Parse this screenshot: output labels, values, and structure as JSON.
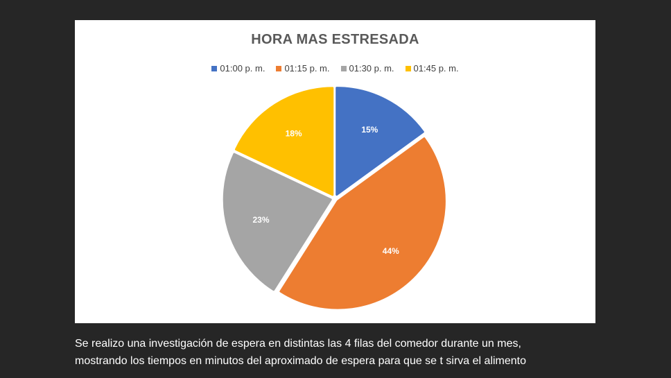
{
  "chart_data": {
    "type": "pie",
    "title": "HORA MAS ESTRESADA",
    "categories": [
      "01:00 p. m.",
      "01:15 p. m.",
      "01:30 p. m.",
      "01:45 p. m."
    ],
    "values": [
      15,
      44,
      23,
      18
    ],
    "labels": [
      "15%",
      "44%",
      "23%",
      "18%"
    ],
    "colors": [
      "#4472C4",
      "#ED7D31",
      "#A5A5A5",
      "#FFC000"
    ],
    "legend_position": "top"
  },
  "caption": {
    "line1": "Se realizo una investigación de espera en distintas las 4 filas del comedor durante un mes,",
    "line2": "mostrando los tiempos en minutos del aproximado de espera para que se t sirva el alimento"
  }
}
